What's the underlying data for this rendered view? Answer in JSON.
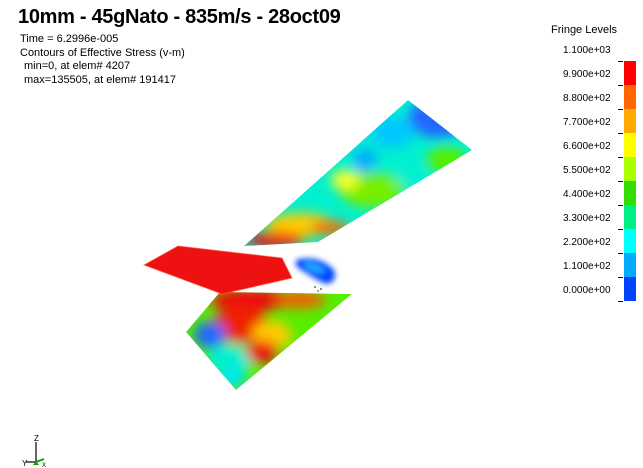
{
  "header": {
    "title": "10mm - 45gNato - 835m/s - 28oct09",
    "time": "Time = 6.2996e-005",
    "contour": "Contours of Effective Stress (v-m)",
    "min": "min=0, at elem# 4207",
    "max": "max=135505, at elem# 191417"
  },
  "legend": {
    "title": "Fringe Levels",
    "levels": [
      "1.100e+03",
      "9.900e+02",
      "8.800e+02",
      "7.700e+02",
      "6.600e+02",
      "5.500e+02",
      "4.400e+02",
      "3.300e+02",
      "2.200e+02",
      "1.100e+02",
      "0.000e+00"
    ],
    "colors": [
      "#ff0000",
      "#ff6600",
      "#ffaa00",
      "#ffff00",
      "#aaff00",
      "#33dd00",
      "#00ee88",
      "#00ffff",
      "#00aaff",
      "#0044ff"
    ]
  },
  "triad": {
    "z": "Z",
    "y": "Y",
    "x": "X"
  },
  "palette": {
    "red": "#ee1111",
    "orange": "#ff8800",
    "yellow": "#ffff22",
    "green": "#55ee00",
    "cyan": "#00f0d0",
    "blue": "#2266ff"
  }
}
